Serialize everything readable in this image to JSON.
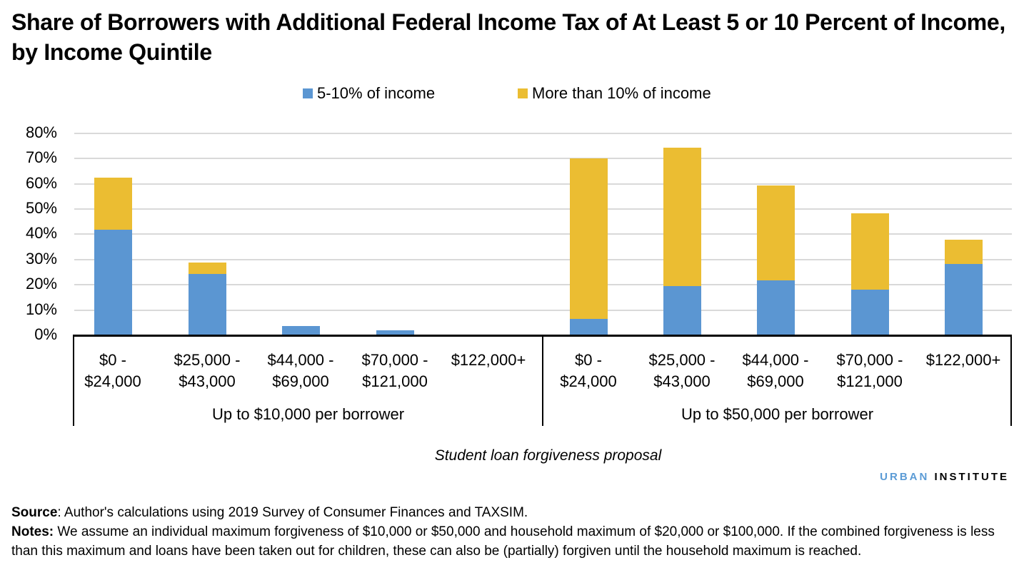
{
  "title": "Share of Borrowers with Additional Federal Income Tax of At Least 5 or 10 Percent of Income, by Income Quintile",
  "legend": [
    {
      "label": "5-10% of income",
      "color": "#5b96d2"
    },
    {
      "label": "More than 10% of income",
      "color": "#ebbd32"
    }
  ],
  "y_ticks": [
    "80%",
    "70%",
    "60%",
    "50%",
    "40%",
    "30%",
    "20%",
    "10%",
    "0%"
  ],
  "x_title": "Student loan forgiveness proposal",
  "groups": [
    {
      "label": "Up to $10,000 per borrower",
      "categories": [
        {
          "line1": "$0 -",
          "line2": "$24,000"
        },
        {
          "line1": "$25,000 -",
          "line2": "$43,000"
        },
        {
          "line1": "$44,000 -",
          "line2": "$69,000"
        },
        {
          "line1": "$70,000 -",
          "line2": "$121,000"
        },
        {
          "line1": "$122,000+",
          "line2": ""
        }
      ]
    },
    {
      "label": "Up to $50,000 per borrower",
      "categories": [
        {
          "line1": "$0 -",
          "line2": "$24,000"
        },
        {
          "line1": "$25,000 -",
          "line2": "$43,000"
        },
        {
          "line1": "$44,000 -",
          "line2": "$69,000"
        },
        {
          "line1": "$70,000 -",
          "line2": "$121,000"
        },
        {
          "line1": "$122,000+",
          "line2": ""
        }
      ]
    }
  ],
  "brand": {
    "part1": "URBAN",
    "part2": "INSTITUTE"
  },
  "footer": {
    "source_label": "Source",
    "source_text": ": Author's calculations using 2019 Survey of Consumer Finances and TAXSIM.",
    "notes_label": "Notes:",
    "notes_text": " We assume an individual maximum forgiveness of $10,000 or $50,000 and household maximum of $20,000 or $100,000. If the combined forgiveness is less than this maximum and loans have been taken out for children, these can also be (partially) forgiven until the household maximum is reached."
  },
  "chart_data": {
    "type": "bar",
    "stacked": true,
    "title": "Share of Borrowers with Additional Federal Income Tax of At Least 5 or 10 Percent of Income, by Income Quintile",
    "xlabel": "Student loan forgiveness proposal",
    "ylabel": "",
    "ylim": [
      0,
      80
    ],
    "y_tick_format": "percent",
    "grid": true,
    "legend_position": "top",
    "group_labels": [
      "Up to $10,000 per borrower",
      "Up to $50,000 per borrower"
    ],
    "categories": [
      "$0 - $24,000",
      "$25,000 - $43,000",
      "$44,000 - $69,000",
      "$70,000 - $121,000",
      "$122,000+",
      "$0 - $24,000",
      "$25,000 - $43,000",
      "$44,000 - $69,000",
      "$70,000 - $121,000",
      "$122,000+"
    ],
    "series": [
      {
        "name": "5-10% of income",
        "color": "#5b96d2",
        "values": [
          41.8,
          24.3,
          3.7,
          2.0,
          0.0,
          6.5,
          19.5,
          21.8,
          18.1,
          28.2
        ]
      },
      {
        "name": "More than 10% of income",
        "color": "#ebbd32",
        "values": [
          20.6,
          4.5,
          0.0,
          0.0,
          0.0,
          63.5,
          54.8,
          37.5,
          30.2,
          9.6
        ]
      }
    ]
  }
}
